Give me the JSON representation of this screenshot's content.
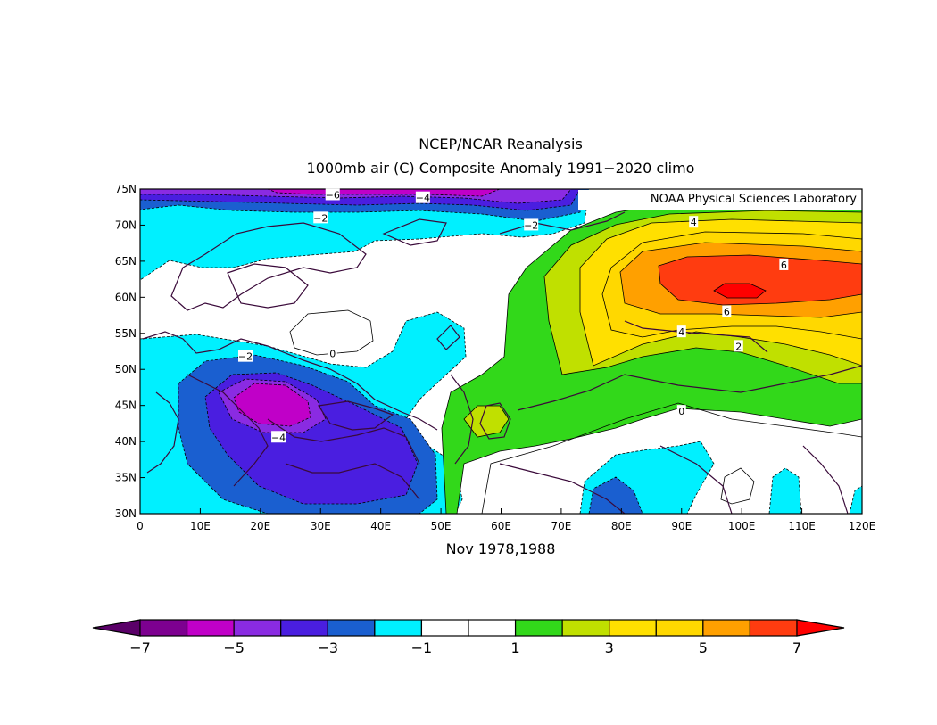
{
  "title": {
    "line1": "NCEP/NCAR Reanalysis",
    "line2": "1000mb air (C) Composite Anomaly 1991−2020 climo"
  },
  "credit": "NOAA Physical Sciences Laboratory",
  "period_label": "Nov 1978,1988",
  "map": {
    "lon_range": [
      0,
      120
    ],
    "lat_range": [
      30,
      75
    ],
    "lon_ticks": [
      {
        "value": 0,
        "label": "0"
      },
      {
        "value": 10,
        "label": "10E"
      },
      {
        "value": 20,
        "label": "20E"
      },
      {
        "value": 30,
        "label": "30E"
      },
      {
        "value": 40,
        "label": "40E"
      },
      {
        "value": 50,
        "label": "50E"
      },
      {
        "value": 60,
        "label": "60E"
      },
      {
        "value": 70,
        "label": "70E"
      },
      {
        "value": 80,
        "label": "80E"
      },
      {
        "value": 90,
        "label": "90E"
      },
      {
        "value": 100,
        "label": "100E"
      },
      {
        "value": 110,
        "label": "110E"
      },
      {
        "value": 120,
        "label": "120E"
      }
    ],
    "lat_ticks": [
      {
        "value": 30,
        "label": "30N"
      },
      {
        "value": 35,
        "label": "35N"
      },
      {
        "value": 40,
        "label": "40N"
      },
      {
        "value": 45,
        "label": "45N"
      },
      {
        "value": 50,
        "label": "50N"
      },
      {
        "value": 55,
        "label": "55N"
      },
      {
        "value": 60,
        "label": "60N"
      },
      {
        "value": 65,
        "label": "65N"
      },
      {
        "value": 70,
        "label": "70N"
      },
      {
        "value": 75,
        "label": "75N"
      }
    ],
    "contour_labels": [
      {
        "text": "−6",
        "lon": 32,
        "lat": 74.2
      },
      {
        "text": "−4",
        "lon": 47,
        "lat": 73.8
      },
      {
        "text": "−2",
        "lon": 30,
        "lat": 71.0
      },
      {
        "text": "−2",
        "lon": 65,
        "lat": 70.0
      },
      {
        "text": "4",
        "lon": 92,
        "lat": 70.4
      },
      {
        "text": "6",
        "lon": 107,
        "lat": 64.5
      },
      {
        "text": "6",
        "lon": 97.5,
        "lat": 58.0
      },
      {
        "text": "4",
        "lon": 90,
        "lat": 55.2
      },
      {
        "text": "2",
        "lon": 99.5,
        "lat": 53.2
      },
      {
        "text": "0",
        "lon": 32,
        "lat": 52.2
      },
      {
        "text": "−2",
        "lon": 17.5,
        "lat": 51.8
      },
      {
        "text": "−4",
        "lon": 23,
        "lat": 40.6
      },
      {
        "text": "0",
        "lon": 90,
        "lat": 44.2
      }
    ]
  },
  "colorbar": {
    "labels": [
      "−7",
      "−5",
      "−3",
      "−1",
      "1",
      "3",
      "5",
      "7"
    ],
    "colors": [
      "#5a0068",
      "#7d0090",
      "#c000c8",
      "#8a2be2",
      "#4a1ee0",
      "#1a5fd0",
      "#00f0ff",
      "#ffffff",
      "#ffffff",
      "#32d81a",
      "#c0e000",
      "#ffe000",
      "#ffd800",
      "#ffa000",
      "#ff3c10",
      "#ff0000"
    ]
  },
  "chart_data": {
    "type": "heatmap",
    "variable": "1000mb air (C) Composite Anomaly 1991−2020 climo",
    "x_range": [
      0,
      120
    ],
    "y_range": [
      30,
      75
    ],
    "contour_levels": [
      -7,
      -6,
      -5,
      -4,
      -3,
      -2,
      -1,
      0,
      1,
      2,
      3,
      4,
      5,
      6,
      7
    ],
    "features": [
      {
        "label": "6",
        "lon": 100,
        "lat": 62
      },
      {
        "label": "−4",
        "lon": 23,
        "lat": 46
      },
      {
        "label": "−6",
        "lon": 32,
        "lat": 74.5
      }
    ]
  }
}
